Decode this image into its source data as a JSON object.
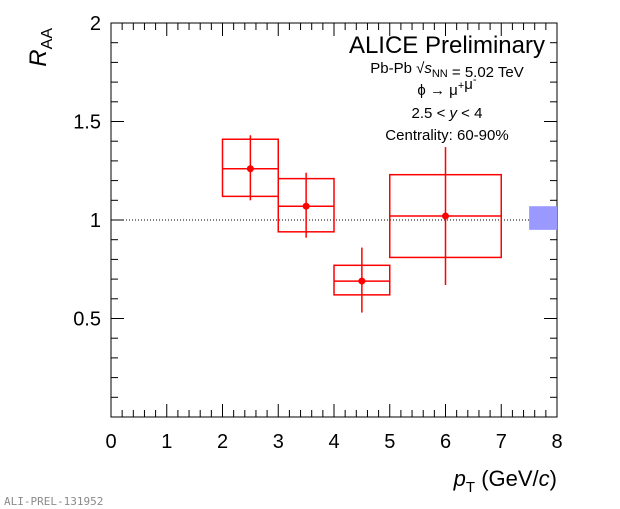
{
  "chart_data": {
    "type": "scatter",
    "title": "ALICE Preliminary",
    "xlabel": {
      "symbol": "p",
      "subscript": "T",
      "unit_prefix": " (GeV/",
      "unit_italic": "c",
      "unit_suffix": ")"
    },
    "ylabel": {
      "symbol": "R",
      "subscript": "AA"
    },
    "xlim": [
      0,
      8
    ],
    "ylim": [
      0,
      2
    ],
    "x_ticks": [
      0,
      1,
      2,
      3,
      4,
      5,
      6,
      7,
      8
    ],
    "y_ticks": [
      0.5,
      1,
      1.5,
      2
    ],
    "x_tick_labels": [
      "0",
      "1",
      "2",
      "3",
      "4",
      "5",
      "6",
      "7",
      "8"
    ],
    "y_tick_labels": [
      "0.5",
      "1",
      "1.5",
      "2"
    ],
    "grid": false,
    "reference_line": 1,
    "series": [
      {
        "color": "#ff0000",
        "points": [
          {
            "x": 2.5,
            "x_lo": 2,
            "x_hi": 3,
            "y": 1.26,
            "stat_lo": 1.1,
            "stat_hi": 1.43,
            "sys_lo": 1.12,
            "sys_hi": 1.41
          },
          {
            "x": 3.5,
            "x_lo": 3,
            "x_hi": 4,
            "y": 1.07,
            "stat_lo": 0.91,
            "stat_hi": 1.24,
            "sys_lo": 0.94,
            "sys_hi": 1.21
          },
          {
            "x": 4.5,
            "x_lo": 4,
            "x_hi": 5,
            "y": 0.69,
            "stat_lo": 0.53,
            "stat_hi": 0.86,
            "sys_lo": 0.62,
            "sys_hi": 0.77
          },
          {
            "x": 6.0,
            "x_lo": 5,
            "x_hi": 7,
            "y": 1.02,
            "stat_lo": 0.67,
            "stat_hi": 1.37,
            "sys_lo": 0.81,
            "sys_hi": 1.23
          }
        ]
      }
    ],
    "global_uncertainty": {
      "y_lo": 0.95,
      "y_hi": 1.07,
      "color": "#9999ff"
    },
    "annotations": [
      {
        "parts": [
          {
            "t": "Pb-Pb "
          },
          {
            "t": "√",
            "style": "root"
          },
          {
            "t": "s",
            "style": "it"
          },
          {
            "t": "NN",
            "style": "sub"
          },
          {
            "t": " = 5.02 TeV"
          }
        ]
      },
      {
        "parts": [
          {
            "t": "ϕ → μ"
          },
          {
            "t": "+",
            "style": "sup"
          },
          {
            "t": "μ"
          },
          {
            "t": "-",
            "style": "sup"
          }
        ]
      },
      {
        "parts": [
          {
            "t": "2.5 < "
          },
          {
            "t": "y",
            "style": "it"
          },
          {
            "t": " < 4"
          }
        ]
      },
      {
        "parts": [
          {
            "t": "Centrality: 60-90%"
          }
        ]
      }
    ]
  },
  "footer": "ALI-PREL-131952"
}
